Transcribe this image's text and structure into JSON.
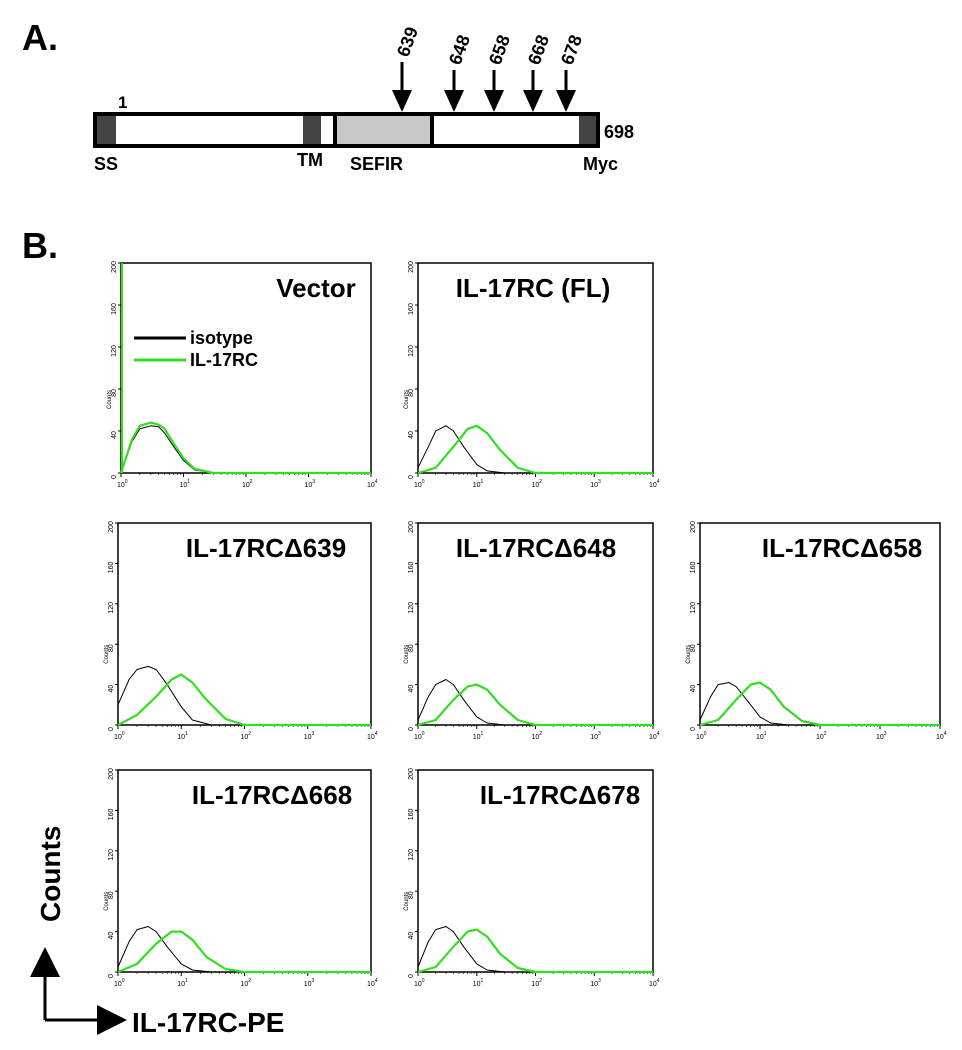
{
  "panels": {
    "a": "A.",
    "b": "B."
  },
  "schematic": {
    "start_label": "1",
    "end_label": "698",
    "domains": [
      "SS",
      "TM",
      "SEFIR",
      "Myc"
    ],
    "truncation_sites": [
      "639",
      "648",
      "658",
      "668",
      "678"
    ]
  },
  "legend": {
    "isotype": "isotype",
    "il17rc": "IL-17RC"
  },
  "axes": {
    "y_title": "Counts",
    "x_title": "IL-17RC-PE",
    "y_ticks": [
      "0",
      "40",
      "80",
      "120",
      "160",
      "200"
    ],
    "x_ticks": [
      {
        "base": "10",
        "exp": "0"
      },
      {
        "base": "10",
        "exp": "1"
      },
      {
        "base": "10",
        "exp": "2"
      },
      {
        "base": "10",
        "exp": "3"
      },
      {
        "base": "10",
        "exp": "4"
      }
    ],
    "small_ylabel": "Counts"
  },
  "colors": {
    "isotype": "#000000",
    "il17rc": "#33dd22"
  },
  "chart_data": {
    "type": "line",
    "x_scale": "log",
    "xlim": [
      1,
      10000
    ],
    "ylim": [
      0,
      200
    ],
    "plots": [
      {
        "title": "Vector",
        "series": [
          {
            "name": "isotype",
            "x": [
              1,
              1.5,
              2,
              3,
              4,
              5,
              7,
              10,
              15,
              30,
              10000
            ],
            "y": [
              0,
              30,
              42,
              45,
              44,
              38,
              25,
              12,
              3,
              0,
              0
            ]
          },
          {
            "name": "IL-17RC",
            "x": [
              1,
              1.5,
              2,
              3,
              4,
              5,
              7,
              10,
              15,
              30,
              10000
            ],
            "y": [
              0,
              32,
              45,
              48,
              46,
              42,
              28,
              14,
              4,
              0,
              0
            ]
          }
        ]
      },
      {
        "title": "IL-17RC (FL)",
        "series": [
          {
            "name": "isotype",
            "x": [
              1,
              1.5,
              2,
              3,
              4,
              6,
              10,
              15,
              30,
              10000
            ],
            "y": [
              5,
              25,
              40,
              45,
              40,
              25,
              8,
              2,
              0,
              0
            ]
          },
          {
            "name": "IL-17RC",
            "x": [
              1,
              2,
              4,
              7,
              10,
              15,
              25,
              50,
              100,
              10000
            ],
            "y": [
              0,
              5,
              25,
              42,
              45,
              38,
              22,
              5,
              0,
              0
            ]
          }
        ]
      },
      {
        "title": "IL-17RCΔ639",
        "series": [
          {
            "name": "isotype",
            "x": [
              1,
              1.5,
              2,
              3,
              4,
              6,
              10,
              15,
              30,
              10000
            ],
            "y": [
              20,
              45,
              55,
              58,
              55,
              40,
              18,
              5,
              0,
              0
            ]
          },
          {
            "name": "IL-17RC",
            "x": [
              1,
              2,
              4,
              7,
              10,
              15,
              25,
              50,
              100,
              10000
            ],
            "y": [
              0,
              10,
              28,
              45,
              50,
              42,
              25,
              6,
              0,
              0
            ]
          }
        ]
      },
      {
        "title": "IL-17RCΔ648",
        "series": [
          {
            "name": "isotype",
            "x": [
              1,
              1.5,
              2,
              3,
              4,
              6,
              10,
              15,
              30,
              10000
            ],
            "y": [
              5,
              28,
              40,
              45,
              40,
              25,
              8,
              2,
              0,
              0
            ]
          },
          {
            "name": "IL-17RC",
            "x": [
              1,
              2,
              4,
              7,
              10,
              15,
              25,
              50,
              100,
              10000
            ],
            "y": [
              0,
              5,
              25,
              38,
              40,
              35,
              20,
              5,
              0,
              0
            ]
          }
        ]
      },
      {
        "title": "IL-17RCΔ658",
        "series": [
          {
            "name": "isotype",
            "x": [
              1,
              1.5,
              2,
              3,
              4,
              6,
              10,
              15,
              30,
              10000
            ],
            "y": [
              5,
              28,
              40,
              42,
              38,
              25,
              8,
              2,
              0,
              0
            ]
          },
          {
            "name": "IL-17RC",
            "x": [
              1,
              2,
              4,
              7,
              10,
              15,
              25,
              50,
              100,
              10000
            ],
            "y": [
              0,
              5,
              25,
              40,
              42,
              35,
              18,
              4,
              0,
              0
            ]
          }
        ]
      },
      {
        "title": "IL-17RCΔ668",
        "series": [
          {
            "name": "isotype",
            "x": [
              1,
              1.5,
              2,
              3,
              4,
              6,
              10,
              15,
              30,
              10000
            ],
            "y": [
              5,
              30,
              42,
              45,
              40,
              25,
              8,
              2,
              0,
              0
            ]
          },
          {
            "name": "IL-17RC",
            "x": [
              1,
              2,
              4,
              7,
              10,
              15,
              25,
              50,
              100,
              10000
            ],
            "y": [
              0,
              8,
              28,
              40,
              40,
              32,
              15,
              3,
              0,
              0
            ]
          }
        ]
      },
      {
        "title": "IL-17RCΔ678",
        "series": [
          {
            "name": "isotype",
            "x": [
              1,
              1.5,
              2,
              3,
              4,
              6,
              10,
              15,
              30,
              10000
            ],
            "y": [
              5,
              30,
              42,
              45,
              40,
              25,
              8,
              2,
              0,
              0
            ]
          },
          {
            "name": "IL-17RC",
            "x": [
              1,
              2,
              4,
              7,
              10,
              15,
              25,
              50,
              100,
              10000
            ],
            "y": [
              0,
              5,
              25,
              40,
              42,
              35,
              18,
              4,
              0,
              0
            ]
          }
        ]
      }
    ]
  }
}
